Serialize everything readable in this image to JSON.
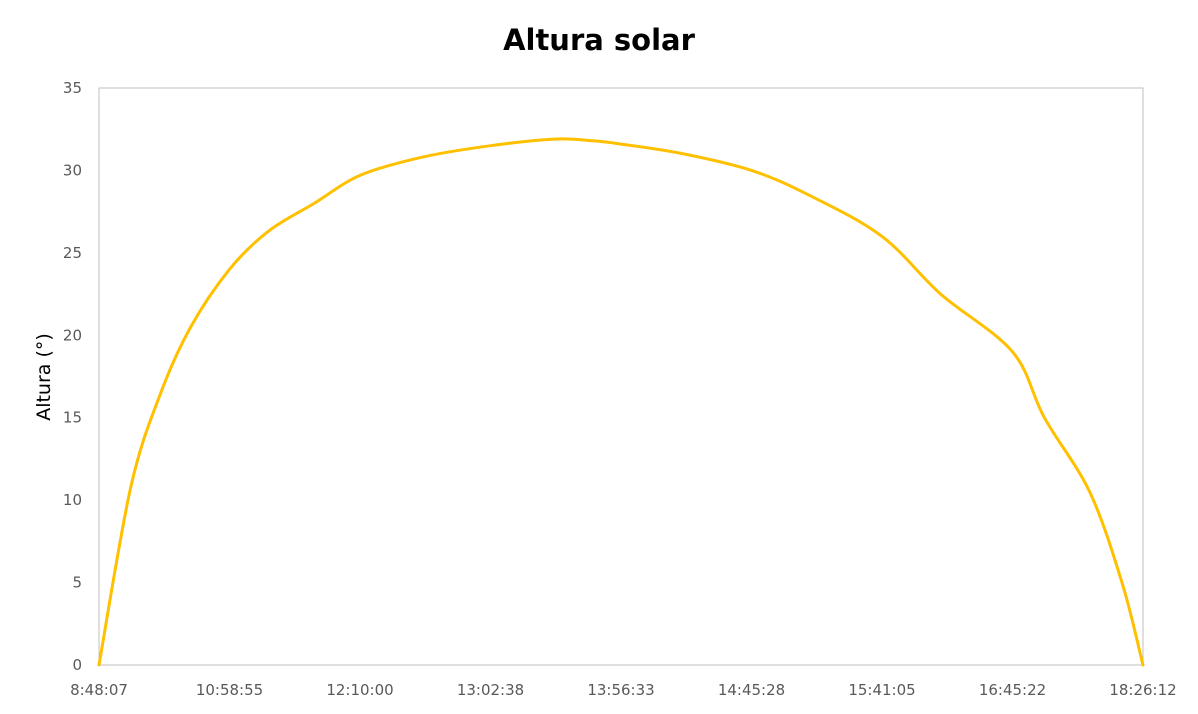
{
  "chart_data": {
    "type": "line",
    "title": "Altura solar",
    "xlabel": "",
    "ylabel": "Altura (°)",
    "ylim": [
      0,
      35
    ],
    "yticks": [
      0,
      5,
      10,
      15,
      20,
      25,
      30,
      35
    ],
    "xtick_labels": [
      "8:48:07",
      "10:58:55",
      "12:10:00",
      "13:02:38",
      "13:56:33",
      "14:45:28",
      "15:41:05",
      "16:45:22",
      "18:26:12"
    ],
    "grid": false,
    "legend": "none",
    "series_color": "#FFC000",
    "series": [
      {
        "x": [
          "8:48:07",
          "9:20:00",
          "9:50:00",
          "10:20:00",
          "10:58:55",
          "11:20:00",
          "11:45:00",
          "12:10:00",
          "12:35:00",
          "13:02:38",
          "13:29:00",
          "13:45:00",
          "13:56:33",
          "14:20:00",
          "14:45:28",
          "15:10:00",
          "15:41:05",
          "16:10:00",
          "16:45:22",
          "17:10:00",
          "17:45:00",
          "18:10:00",
          "18:26:12"
        ],
        "values": [
          0,
          10.8,
          16.5,
          20.5,
          24.0,
          26.3,
          28.0,
          29.7,
          30.8,
          31.5,
          31.9,
          31.8,
          31.6,
          31.0,
          30.0,
          28.5,
          26.0,
          22.5,
          19.0,
          15.0,
          10.5,
          5.0,
          0
        ]
      }
    ]
  }
}
